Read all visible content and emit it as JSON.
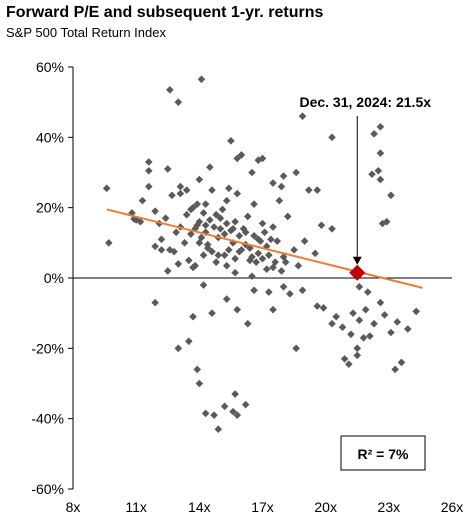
{
  "title": "Forward P/E and subsequent 1-yr. returns",
  "subtitle": "S&P 500 Total Return Index",
  "colors": {
    "points": "#5a5a5a",
    "trend_line": "#ed7d31",
    "highlight": "#c00000",
    "axis": "#000000",
    "text": "#000000"
  },
  "chart_data": {
    "type": "scatter",
    "title": "Forward P/E and subsequent 1-yr. returns",
    "subtitle": "S&P 500 Total Return Index",
    "xlabel": "",
    "ylabel": "",
    "xlim": [
      8,
      26
    ],
    "ylim": [
      -60,
      60
    ],
    "x_ticks": [
      8,
      11,
      14,
      17,
      20,
      23,
      26
    ],
    "x_tick_labels": [
      "8x",
      "11x",
      "14x",
      "17x",
      "20x",
      "23x",
      "26x"
    ],
    "y_ticks": [
      60,
      40,
      20,
      0,
      -20,
      -40,
      -60
    ],
    "y_tick_labels": [
      "60%",
      "40%",
      "20%",
      "0%",
      "-20%",
      "-40%",
      "-60%"
    ],
    "grid": false,
    "series": [
      {
        "points": [
          [
            9.6,
            25.5
          ],
          [
            9.7,
            10.0
          ],
          [
            10.8,
            18.5
          ],
          [
            10.9,
            16.8
          ],
          [
            11.0,
            16.5
          ],
          [
            11.2,
            16.0
          ],
          [
            11.3,
            22.0
          ],
          [
            11.6,
            26.0
          ],
          [
            11.6,
            30.5
          ],
          [
            11.9,
            19.0
          ],
          [
            12.1,
            15.5
          ],
          [
            12.2,
            11.0
          ],
          [
            12.4,
            17.0
          ],
          [
            12.5,
            2.0
          ],
          [
            12.6,
            8.0
          ],
          [
            12.7,
            23.5
          ],
          [
            12.8,
            7.5
          ],
          [
            12.9,
            13.0
          ],
          [
            13.0,
            4.0
          ],
          [
            13.1,
            14.5
          ],
          [
            13.1,
            24.0
          ],
          [
            13.3,
            10.0
          ],
          [
            13.4,
            18.0
          ],
          [
            13.4,
            25.0
          ],
          [
            13.5,
            5.0
          ],
          [
            13.6,
            12.5
          ],
          [
            13.6,
            19.5
          ],
          [
            13.7,
            20.0
          ],
          [
            13.8,
            14.0
          ],
          [
            13.8,
            3.5
          ],
          [
            13.9,
            15.0
          ],
          [
            13.9,
            21.0
          ],
          [
            14.0,
            16.0
          ],
          [
            14.0,
            10.0
          ],
          [
            14.1,
            11.5
          ],
          [
            14.2,
            18.5
          ],
          [
            14.3,
            15.0
          ],
          [
            14.3,
            21.0
          ],
          [
            14.3,
            13.0
          ],
          [
            14.4,
            8.5
          ],
          [
            14.4,
            9.5
          ],
          [
            14.5,
            16.5
          ],
          [
            14.6,
            7.5
          ],
          [
            14.6,
            25.0
          ],
          [
            14.7,
            14.5
          ],
          [
            14.8,
            18.0
          ],
          [
            14.9,
            6.5
          ],
          [
            14.9,
            11.5
          ],
          [
            15.0,
            14.0
          ],
          [
            15.0,
            17.0
          ],
          [
            15.1,
            19.5
          ],
          [
            15.2,
            6.5
          ],
          [
            15.2,
            12.5
          ],
          [
            15.3,
            15.5
          ],
          [
            15.3,
            22.0
          ],
          [
            15.4,
            8.0
          ],
          [
            15.5,
            13.5
          ],
          [
            15.6,
            14.0
          ],
          [
            15.6,
            10.0
          ],
          [
            15.7,
            16.0
          ],
          [
            15.7,
            5.5
          ],
          [
            15.8,
            24.0
          ],
          [
            15.9,
            12.0
          ],
          [
            15.9,
            7.5
          ],
          [
            16.0,
            8.0
          ],
          [
            16.1,
            14.0
          ],
          [
            16.2,
            13.0
          ],
          [
            16.2,
            9.5
          ],
          [
            16.3,
            17.5
          ],
          [
            16.4,
            5.0
          ],
          [
            16.4,
            8.5
          ],
          [
            16.5,
            6.0
          ],
          [
            16.6,
            12.0
          ],
          [
            16.6,
            21.0
          ],
          [
            16.7,
            4.5
          ],
          [
            16.8,
            11.0
          ],
          [
            16.8,
            7.0
          ],
          [
            16.9,
            10.5
          ],
          [
            17.0,
            5.5
          ],
          [
            17.0,
            15.5
          ],
          [
            17.1,
            13.0
          ],
          [
            17.2,
            2.5
          ],
          [
            17.2,
            9.0
          ],
          [
            17.3,
            6.5
          ],
          [
            17.4,
            11.0
          ],
          [
            17.5,
            3.0
          ],
          [
            17.5,
            14.5
          ],
          [
            17.6,
            4.5
          ],
          [
            17.7,
            10.5
          ],
          [
            17.8,
            22.0
          ],
          [
            17.9,
            2.0
          ],
          [
            18.0,
            6.0
          ],
          [
            18.1,
            4.5
          ],
          [
            18.2,
            17.5
          ],
          [
            18.5,
            8.0
          ],
          [
            18.7,
            3.5
          ],
          [
            19.0,
            10.5
          ],
          [
            19.5,
            7.0
          ],
          [
            19.8,
            15.0
          ],
          [
            20.3,
            14.0
          ],
          [
            11.9,
            9.0
          ],
          [
            12.2,
            8.0
          ],
          [
            13.7,
            3.0
          ],
          [
            14.2,
            6.5
          ],
          [
            14.8,
            4.5
          ],
          [
            15.3,
            3.5
          ],
          [
            15.7,
            1.5
          ],
          [
            16.5,
            0.5
          ],
          [
            11.6,
            33.0
          ],
          [
            12.5,
            31.0
          ],
          [
            13.1,
            26.0
          ],
          [
            14.0,
            28.0
          ],
          [
            14.5,
            31.5
          ],
          [
            15.5,
            39.0
          ],
          [
            16.0,
            35.0
          ],
          [
            16.5,
            30.0
          ],
          [
            17.0,
            34.0
          ],
          [
            17.5,
            27.0
          ],
          [
            18.0,
            29.0
          ],
          [
            18.6,
            30.0
          ],
          [
            18.9,
            46.0
          ],
          [
            19.2,
            25.0
          ],
          [
            19.6,
            25.0
          ],
          [
            20.3,
            40.0
          ],
          [
            12.6,
            53.5
          ],
          [
            13.0,
            50.0
          ],
          [
            14.1,
            56.5
          ],
          [
            15.4,
            25.5
          ],
          [
            16.8,
            33.5
          ],
          [
            17.9,
            26.0
          ],
          [
            15.8,
            34.0
          ],
          [
            11.9,
            -7.0
          ],
          [
            13.0,
            -20.0
          ],
          [
            13.5,
            -18.0
          ],
          [
            13.7,
            -11.0
          ],
          [
            14.2,
            -2.0
          ],
          [
            14.6,
            -10.0
          ],
          [
            15.3,
            -6.0
          ],
          [
            15.8,
            -9.0
          ],
          [
            16.3,
            -13.0
          ],
          [
            16.6,
            -3.5
          ],
          [
            17.3,
            -4.0
          ],
          [
            17.5,
            -9.0
          ],
          [
            18.0,
            -2.5
          ],
          [
            18.3,
            -4.5
          ],
          [
            18.9,
            -3.5
          ],
          [
            18.6,
            -20.0
          ],
          [
            19.6,
            -8.0
          ],
          [
            19.9,
            -8.5
          ],
          [
            13.9,
            -26.0
          ],
          [
            14.0,
            -30.0
          ],
          [
            14.3,
            -38.5
          ],
          [
            14.7,
            -39.0
          ],
          [
            14.9,
            -43.0
          ],
          [
            15.2,
            -36.5
          ],
          [
            15.6,
            -38.0
          ],
          [
            15.7,
            -33.0
          ],
          [
            15.8,
            -39.0
          ],
          [
            16.2,
            -36.0
          ],
          [
            20.3,
            -13.0
          ],
          [
            20.5,
            -11.0
          ],
          [
            20.8,
            -14.0
          ],
          [
            20.9,
            -23.0
          ],
          [
            21.1,
            -24.5
          ],
          [
            21.2,
            -16.0
          ],
          [
            21.3,
            -10.0
          ],
          [
            21.5,
            -22.0
          ],
          [
            21.5,
            -20.0
          ],
          [
            21.6,
            -12.0
          ],
          [
            21.8,
            -17.0
          ],
          [
            21.9,
            -9.0
          ],
          [
            22.1,
            -16.5
          ],
          [
            22.3,
            -13.0
          ],
          [
            22.6,
            -7.0
          ],
          [
            22.8,
            -10.5
          ],
          [
            23.1,
            -15.5
          ],
          [
            23.3,
            -26.0
          ],
          [
            23.4,
            -12.5
          ],
          [
            23.6,
            -24.0
          ],
          [
            23.9,
            -14.5
          ],
          [
            24.3,
            -9.5
          ],
          [
            21.6,
            -2.5
          ],
          [
            22.0,
            -4.0
          ],
          [
            22.2,
            29.5
          ],
          [
            22.3,
            41.0
          ],
          [
            22.6,
            43.0
          ],
          [
            22.5,
            30.5
          ],
          [
            22.6,
            28.0
          ],
          [
            22.6,
            35.5
          ],
          [
            22.7,
            15.5
          ],
          [
            22.9,
            16.0
          ],
          [
            23.1,
            23.5
          ]
        ]
      }
    ],
    "trend_line": {
      "x": [
        9.6,
        24.6
      ],
      "y": [
        19.5,
        -2.8
      ]
    },
    "highlight": {
      "x": 21.5,
      "y": 1.5,
      "label": "Dec. 31, 2024: 21.5x"
    },
    "annotation": "R² = 7%"
  }
}
